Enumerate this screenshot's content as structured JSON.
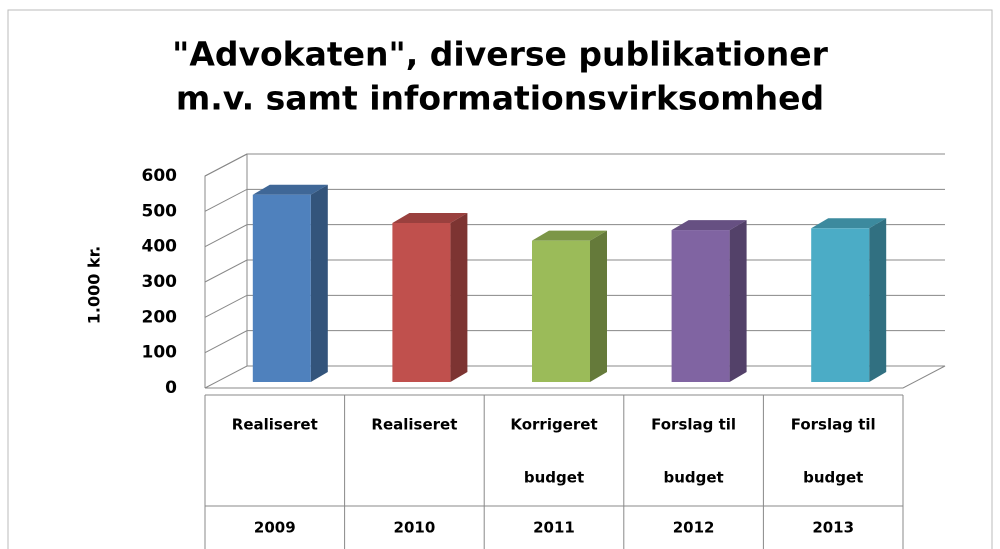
{
  "chart_data": {
    "type": "bar3d",
    "title": [
      "\"Advokaten\", diverse publikationer",
      "m.v. samt informationsvirksomhed"
    ],
    "y_label": "1.000 kr.",
    "categories": [
      "2009",
      "2010",
      "2011",
      "2012",
      "2013"
    ],
    "category_descriptions": [
      [
        "Realiseret"
      ],
      [
        "Realiseret"
      ],
      [
        "Korrigeret",
        "budget"
      ],
      [
        "Forslag til",
        "budget"
      ],
      [
        "Forslag til",
        "budget"
      ]
    ],
    "values": [
      530,
      450,
      400,
      430,
      435
    ],
    "colors": [
      "#4f81bd",
      "#c0504d",
      "#9bbb59",
      "#8064a2",
      "#4bacc6"
    ],
    "ylim": [
      0,
      600
    ],
    "yticks": [
      0,
      100,
      200,
      300,
      400,
      500,
      600
    ],
    "grid": true
  }
}
